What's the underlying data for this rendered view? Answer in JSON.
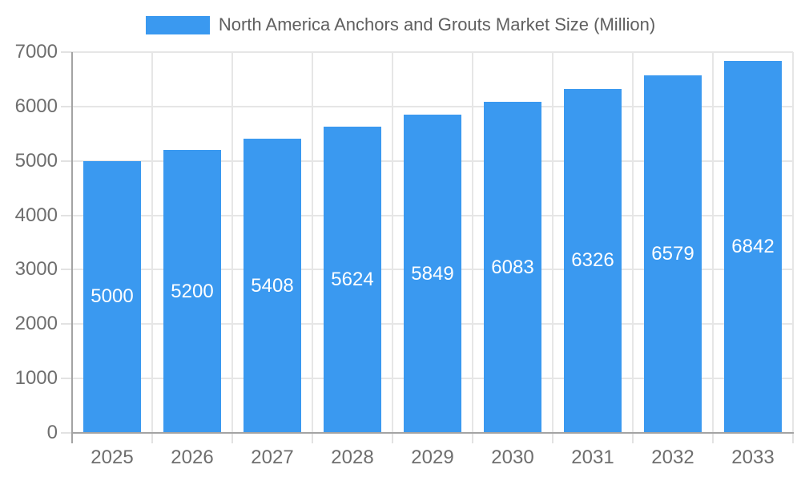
{
  "chart_data": {
    "type": "bar",
    "title": "North America Anchors and Grouts Market Size (Million)",
    "categories": [
      "2025",
      "2026",
      "2027",
      "2028",
      "2029",
      "2030",
      "2031",
      "2032",
      "2033"
    ],
    "series": [
      {
        "name": "North America Anchors and Grouts Market Size (Million)",
        "values": [
          5000,
          5200,
          5408,
          5624,
          5849,
          6083,
          6326,
          6579,
          6842
        ]
      }
    ],
    "xlabel": "",
    "ylabel": "",
    "ylim": [
      0,
      7000
    ],
    "yticks": [
      0,
      1000,
      2000,
      3000,
      4000,
      5000,
      6000,
      7000
    ],
    "grid": "both",
    "legend_position": "top",
    "value_labels": "inside-middle",
    "colors": {
      "bar": "#3A99F0",
      "bar_label": "#ffffff",
      "axis_line": "#a3a3a3",
      "gridline": "#e6e6e6",
      "tick": "#e2e2e2",
      "tick_label": "#6e6e6e",
      "legend_text": "#5f5f5f",
      "background": "#ffffff"
    }
  }
}
